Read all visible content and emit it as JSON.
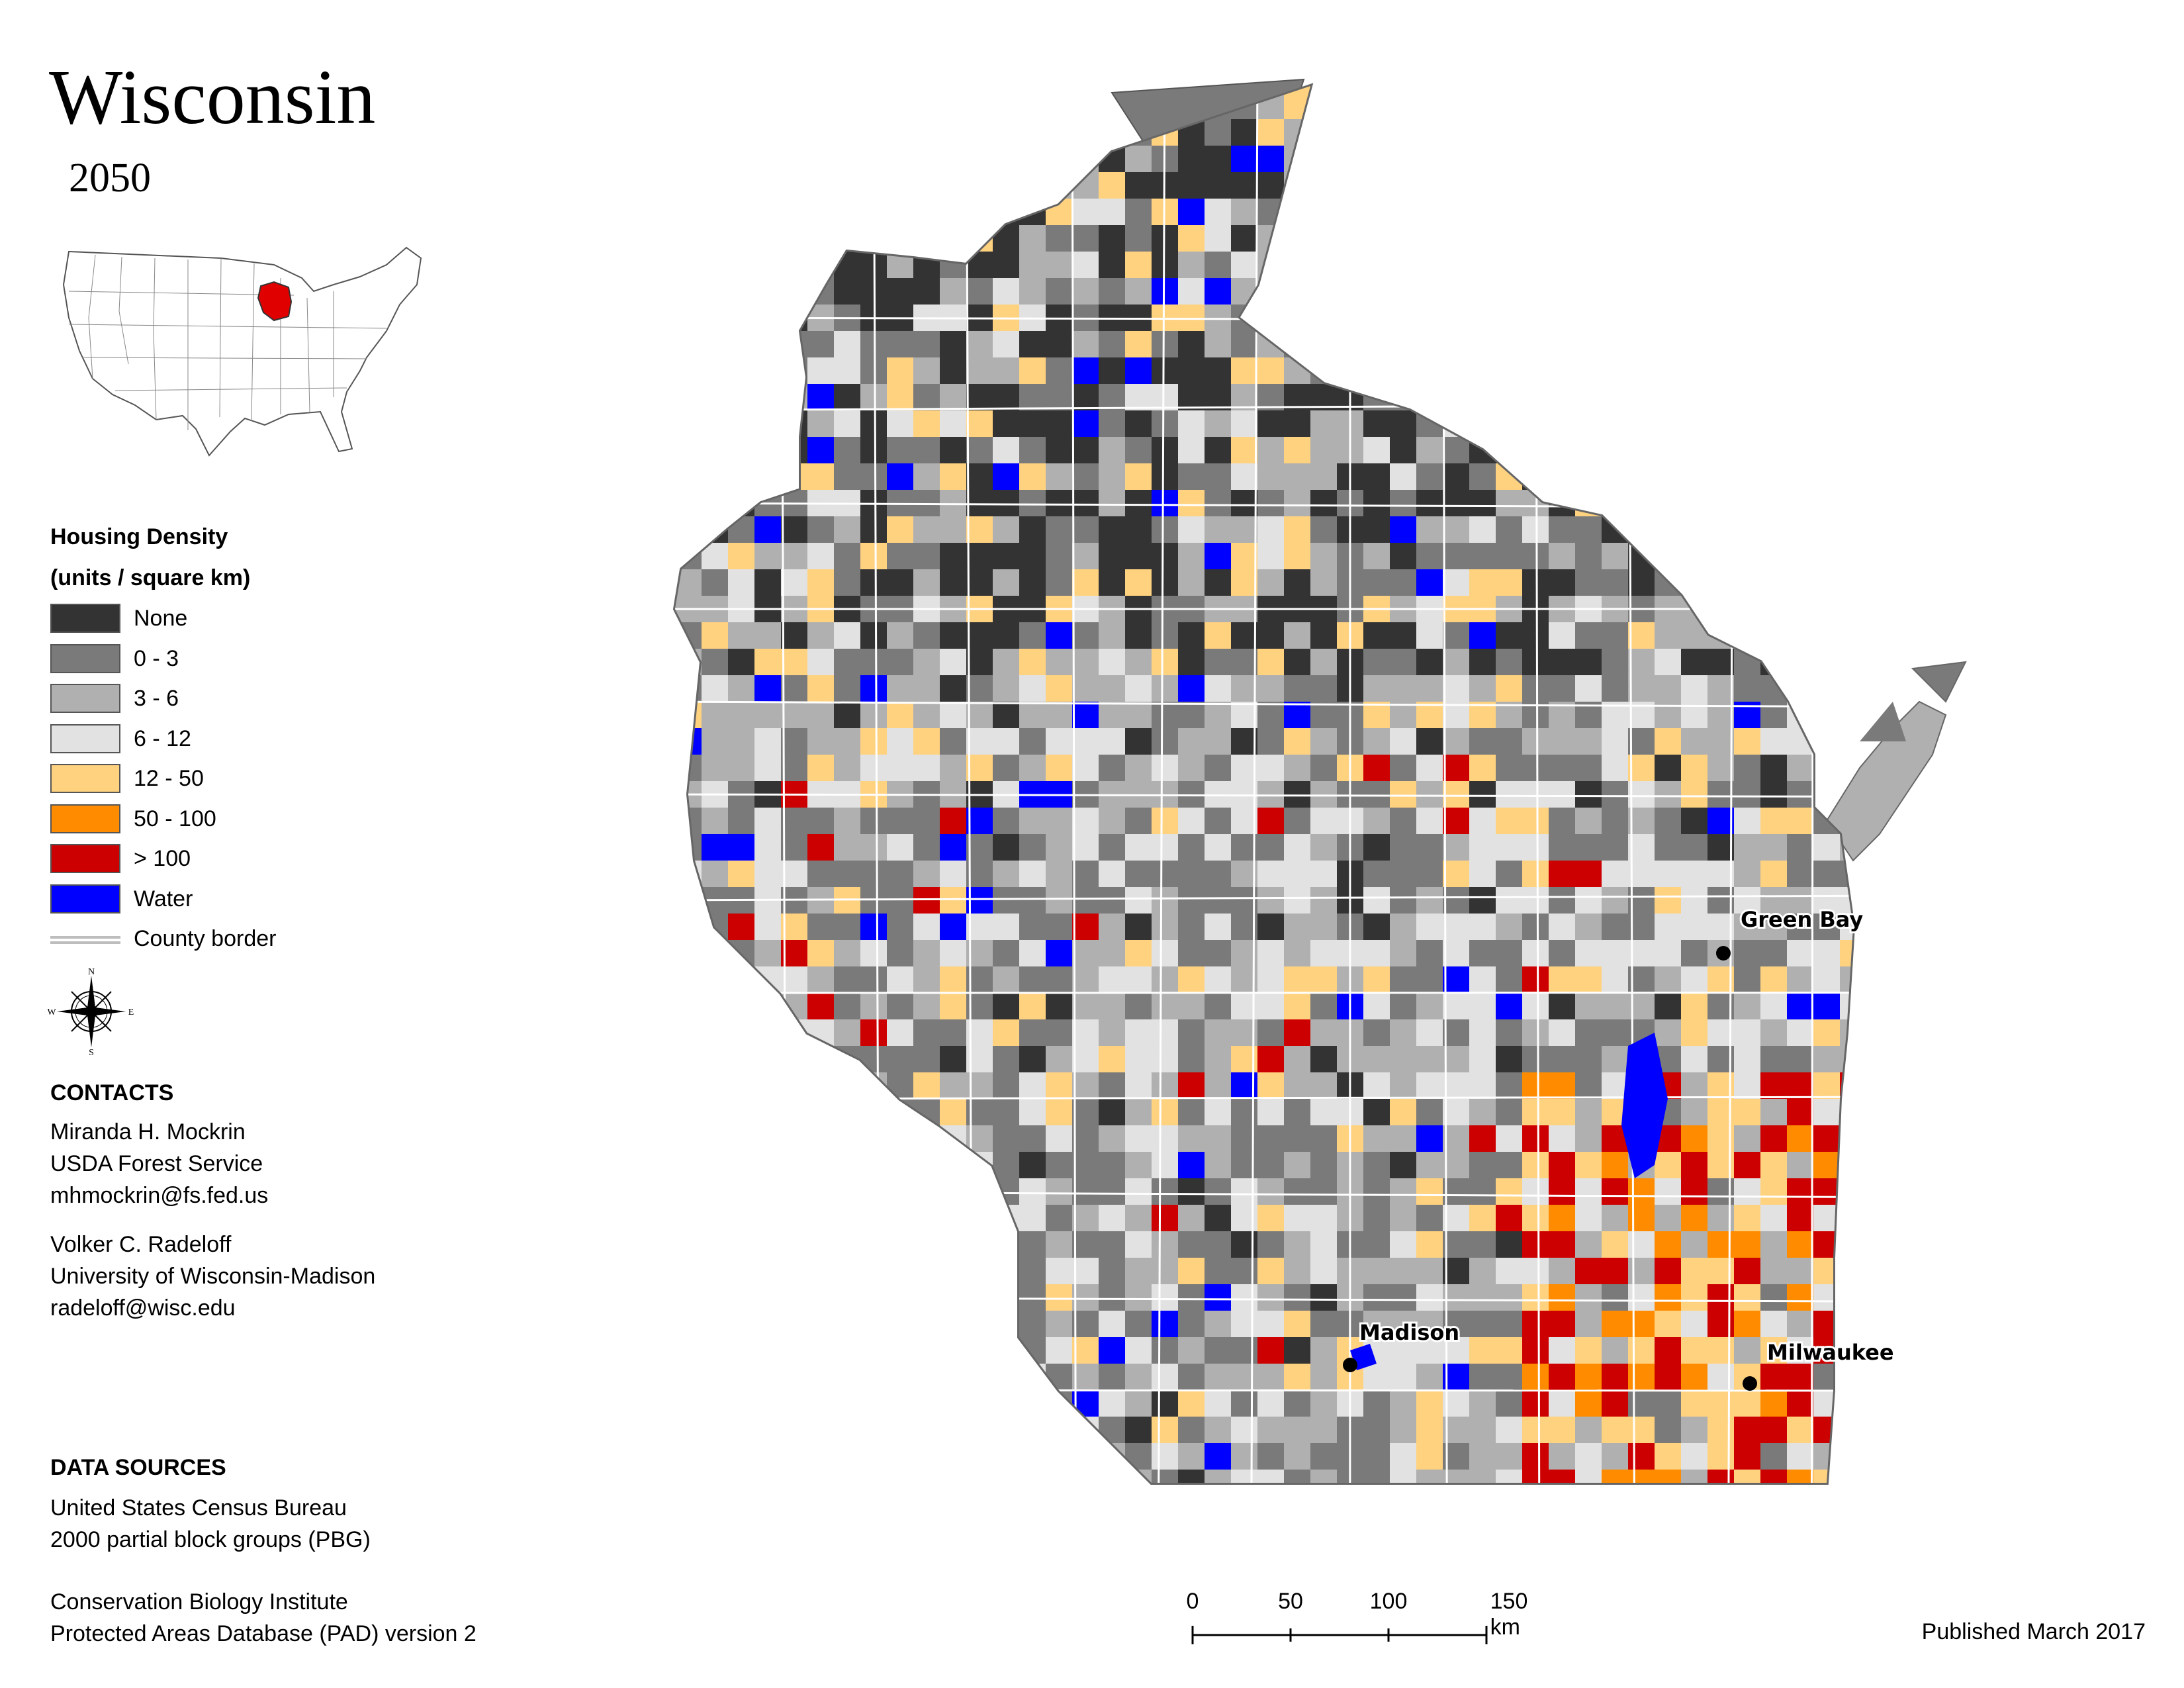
{
  "title": "Wisconsin",
  "subtitle": "2050",
  "inset": {
    "highlight_color": "#e00000"
  },
  "legend": {
    "title_line1": "Housing Density",
    "title_line2": "(units / square km)",
    "items": [
      {
        "label": "None",
        "color": "#333333"
      },
      {
        "label": "0 - 3",
        "color": "#7a7a7a"
      },
      {
        "label": "3 - 6",
        "color": "#b0b0b0"
      },
      {
        "label": "6 - 12",
        "color": "#e2e2e2"
      },
      {
        "label": "12 - 50",
        "color": "#ffd280"
      },
      {
        "label": "50 - 100",
        "color": "#ff8c00"
      },
      {
        "label": "> 100",
        "color": "#cc0000"
      },
      {
        "label": "Water",
        "color": "#0000ff"
      }
    ],
    "border_label": "County border"
  },
  "compass": {
    "n": "N",
    "s": "S",
    "e": "E",
    "w": "W"
  },
  "contacts": {
    "heading": "CONTACTS",
    "people": [
      {
        "name": "Miranda H. Mockrin",
        "org": "USDA Forest Service",
        "email": "mhmockrin@fs.fed.us"
      },
      {
        "name": "Volker C. Radeloff",
        "org": "University of Wisconsin-Madison",
        "email": "radeloff@wisc.edu"
      }
    ]
  },
  "data_sources": {
    "heading": "DATA SOURCES",
    "sources": [
      {
        "line1": "United States Census Bureau",
        "line2": "2000 partial block groups (PBG)"
      },
      {
        "line1": "Conservation Biology Institute",
        "line2": "Protected Areas Database (PAD) version 2"
      }
    ]
  },
  "cities": [
    {
      "name": "Green Bay"
    },
    {
      "name": "Madison"
    },
    {
      "name": "Milwaukee"
    }
  ],
  "scale_bar": {
    "ticks": [
      "0",
      "50",
      "100",
      "150 km"
    ]
  },
  "published": "Published March 2017"
}
